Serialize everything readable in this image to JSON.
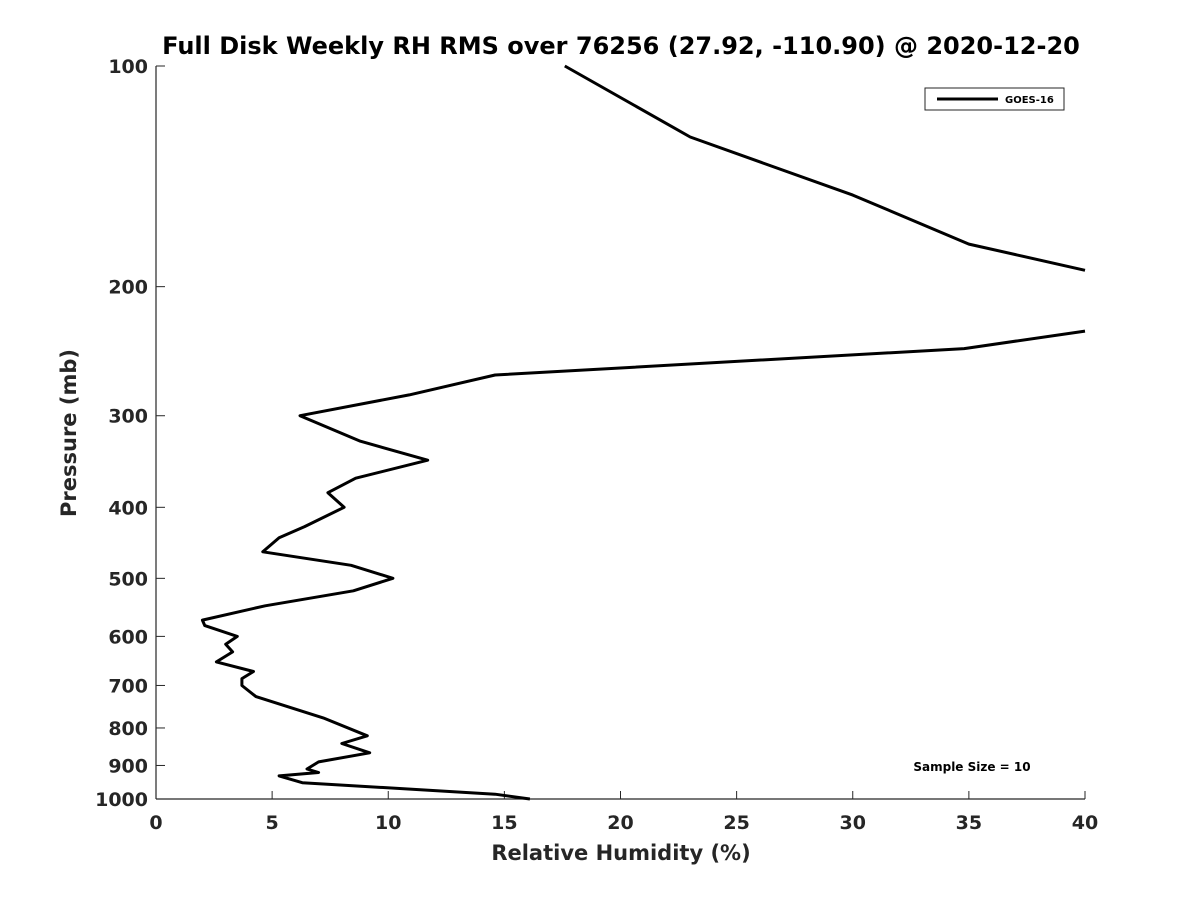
{
  "chart_data": {
    "type": "line",
    "title": "Full Disk Weekly RH RMS over 76256 (27.92, -110.90) @ 2020-12-20",
    "xlabel": "Relative Humidity (%)",
    "ylabel": "Pressure (mb)",
    "xlim": [
      0,
      40
    ],
    "ylim": [
      100,
      1000
    ],
    "yscale": "log",
    "yreversed": true,
    "grid": false,
    "legend_position": "top-right",
    "x_ticks": [
      0,
      5,
      10,
      15,
      20,
      25,
      30,
      35,
      40
    ],
    "x_tick_labels": [
      "0",
      "5",
      "10",
      "15",
      "20",
      "25",
      "30",
      "35",
      "40"
    ],
    "y_ticks": [
      100,
      200,
      300,
      400,
      500,
      600,
      700,
      800,
      900,
      1000
    ],
    "y_tick_labels": [
      "100",
      "200",
      "300",
      "400",
      "500",
      "600",
      "700",
      "800",
      "900",
      "1000"
    ],
    "series": [
      {
        "name": "GOES-16",
        "color": "#000000",
        "segments": [
          {
            "points": [
              [
                17.6,
                100
              ],
              [
                23,
                125
              ],
              [
                30,
                150
              ],
              [
                35,
                175
              ],
              [
                40,
                190
              ]
            ]
          },
          {
            "points": [
              [
                40,
                230
              ],
              [
                34.8,
                243
              ],
              [
                14.6,
                264
              ],
              [
                10.9,
                281
              ],
              [
                6.2,
                300
              ],
              [
                8.8,
                325
              ],
              [
                11.7,
                345
              ],
              [
                8.6,
                365
              ],
              [
                7.4,
                382
              ],
              [
                8.1,
                400
              ],
              [
                6.4,
                425
              ],
              [
                5.3,
                440
              ],
              [
                4.6,
                460
              ],
              [
                8.4,
                480
              ],
              [
                10.2,
                500
              ],
              [
                8.5,
                520
              ],
              [
                4.7,
                545
              ],
              [
                2.0,
                570
              ],
              [
                2.1,
                580
              ],
              [
                3.5,
                600
              ],
              [
                3.0,
                615
              ],
              [
                3.3,
                630
              ],
              [
                2.6,
                650
              ],
              [
                4.2,
                670
              ],
              [
                3.7,
                685
              ],
              [
                3.7,
                700
              ],
              [
                4.3,
                725
              ],
              [
                7.2,
                775
              ],
              [
                9.1,
                820
              ],
              [
                8.0,
                840
              ],
              [
                9.2,
                865
              ],
              [
                7.0,
                890
              ],
              [
                6.5,
                910
              ],
              [
                7.0,
                920
              ],
              [
                5.3,
                930
              ],
              [
                6.3,
                950
              ],
              [
                14.6,
                985
              ],
              [
                16.1,
                1000
              ]
            ]
          }
        ]
      }
    ],
    "annotations": [
      {
        "text": "Sample Size = 10"
      }
    ]
  }
}
